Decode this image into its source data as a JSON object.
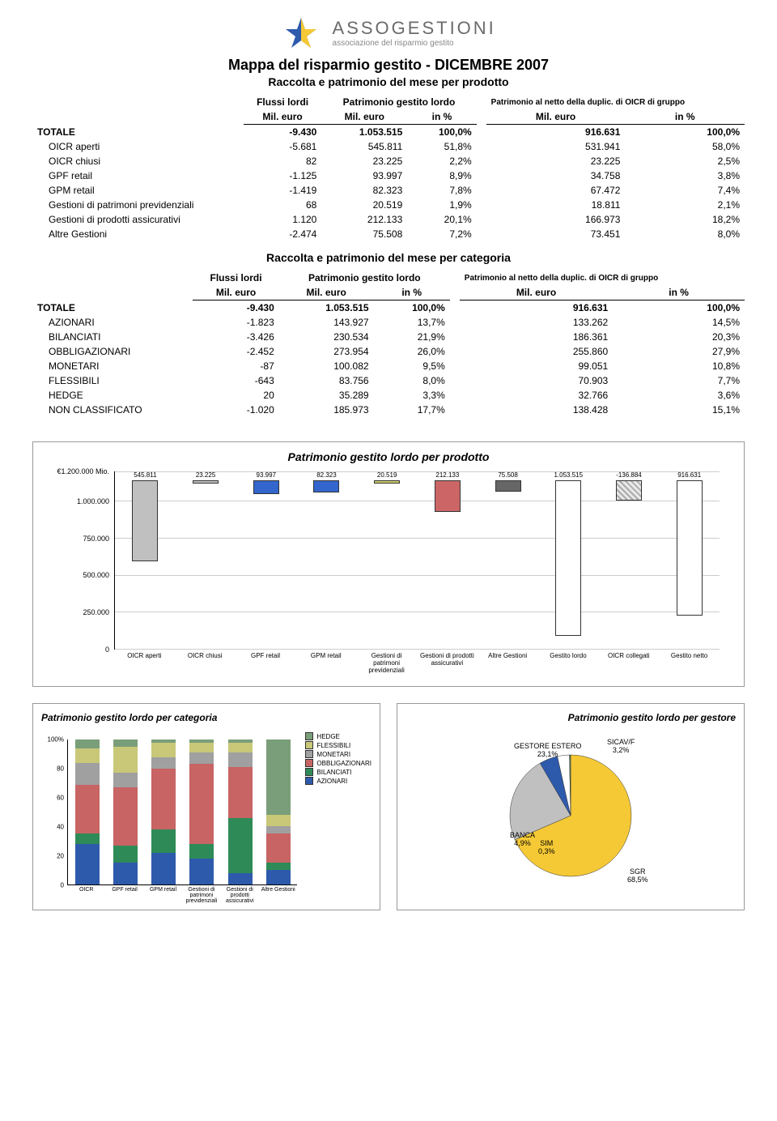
{
  "logo": {
    "name": "ASSOGESTIONI",
    "sub": "associazione del risparmio gestito"
  },
  "page_title": "Mappa del risparmio gestito - DICEMBRE 2007",
  "table1": {
    "subtitle": "Raccolta e patrimonio del mese per prodotto",
    "head_flussi": "Flussi lordi",
    "head_patr": "Patrimonio gestito lordo",
    "head_netto": "Patrimonio al netto della duplic. di OICR di gruppo",
    "unit_mil": "Mil. euro",
    "unit_pct": "in %",
    "rows": [
      {
        "label": "TOTALE",
        "indent": false,
        "total": true,
        "flussi": "-9.430",
        "patr": "1.053.515",
        "patr_pct": "100,0%",
        "netto": "916.631",
        "netto_pct": "100,0%"
      },
      {
        "label": "OICR aperti",
        "indent": true,
        "flussi": "-5.681",
        "patr": "545.811",
        "patr_pct": "51,8%",
        "netto": "531.941",
        "netto_pct": "58,0%"
      },
      {
        "label": "OICR chiusi",
        "indent": true,
        "flussi": "82",
        "patr": "23.225",
        "patr_pct": "2,2%",
        "netto": "23.225",
        "netto_pct": "2,5%"
      },
      {
        "label": "GPF retail",
        "indent": true,
        "flussi": "-1.125",
        "patr": "93.997",
        "patr_pct": "8,9%",
        "netto": "34.758",
        "netto_pct": "3,8%"
      },
      {
        "label": "GPM retail",
        "indent": true,
        "flussi": "-1.419",
        "patr": "82.323",
        "patr_pct": "7,8%",
        "netto": "67.472",
        "netto_pct": "7,4%"
      },
      {
        "label": "Gestioni di patrimoni previdenziali",
        "indent": true,
        "flussi": "68",
        "patr": "20.519",
        "patr_pct": "1,9%",
        "netto": "18.811",
        "netto_pct": "2,1%"
      },
      {
        "label": "Gestioni di prodotti assicurativi",
        "indent": true,
        "flussi": "1.120",
        "patr": "212.133",
        "patr_pct": "20,1%",
        "netto": "166.973",
        "netto_pct": "18,2%"
      },
      {
        "label": "Altre Gestioni",
        "indent": true,
        "flussi": "-2.474",
        "patr": "75.508",
        "patr_pct": "7,2%",
        "netto": "73.451",
        "netto_pct": "8,0%"
      }
    ]
  },
  "table2": {
    "subtitle": "Raccolta e patrimonio del mese per categoria",
    "rows": [
      {
        "label": "TOTALE",
        "indent": false,
        "total": true,
        "flussi": "-9.430",
        "patr": "1.053.515",
        "patr_pct": "100,0%",
        "netto": "916.631",
        "netto_pct": "100,0%"
      },
      {
        "label": "AZIONARI",
        "indent": true,
        "flussi": "-1.823",
        "patr": "143.927",
        "patr_pct": "13,7%",
        "netto": "133.262",
        "netto_pct": "14,5%"
      },
      {
        "label": "BILANCIATI",
        "indent": true,
        "flussi": "-3.426",
        "patr": "230.534",
        "patr_pct": "21,9%",
        "netto": "186.361",
        "netto_pct": "20,3%"
      },
      {
        "label": "OBBLIGAZIONARI",
        "indent": true,
        "flussi": "-2.452",
        "patr": "273.954",
        "patr_pct": "26,0%",
        "netto": "255.860",
        "netto_pct": "27,9%"
      },
      {
        "label": "MONETARI",
        "indent": true,
        "flussi": "-87",
        "patr": "100.082",
        "patr_pct": "9,5%",
        "netto": "99.051",
        "netto_pct": "10,8%"
      },
      {
        "label": "FLESSIBILI",
        "indent": true,
        "flussi": "-643",
        "patr": "83.756",
        "patr_pct": "8,0%",
        "netto": "70.903",
        "netto_pct": "7,7%"
      },
      {
        "label": "HEDGE",
        "indent": true,
        "flussi": "20",
        "patr": "35.289",
        "patr_pct": "3,3%",
        "netto": "32.766",
        "netto_pct": "3,6%"
      },
      {
        "label": "NON CLASSIFICATO",
        "indent": true,
        "flussi": "-1.020",
        "patr": "185.973",
        "patr_pct": "17,7%",
        "netto": "138.428",
        "netto_pct": "15,1%"
      }
    ]
  },
  "bar_chart": {
    "title": "Patrimonio gestito lordo per prodotto",
    "ymax": 1200000,
    "ylabel_top": "€1.200.000 Mio.",
    "yticks": [
      {
        "v": 1200000,
        "label": "€1.200.000 Mio."
      },
      {
        "v": 1000000,
        "label": "1.000.000"
      },
      {
        "v": 750000,
        "label": "750.000"
      },
      {
        "v": 500000,
        "label": "500.000"
      },
      {
        "v": 250000,
        "label": "250.000"
      },
      {
        "v": 0,
        "label": "0"
      }
    ],
    "bars": [
      {
        "label": "OICR aperti",
        "value": 545811,
        "disp": "545.811",
        "color": "#c0c0c0"
      },
      {
        "label": "OICR chiusi",
        "value": 23225,
        "disp": "23.225",
        "color": "#c0c0c0"
      },
      {
        "label": "GPF retail",
        "value": 93997,
        "disp": "93.997",
        "color": "#3366cc"
      },
      {
        "label": "GPM retail",
        "value": 82323,
        "disp": "82.323",
        "color": "#3366cc"
      },
      {
        "label": "Gestioni di patrimoni previdenziali",
        "value": 20519,
        "disp": "20.519",
        "color": "#cccc66"
      },
      {
        "label": "Gestioni di prodotti assicurativi",
        "value": 212133,
        "disp": "212.133",
        "color": "#cc6666"
      },
      {
        "label": "Altre Gestioni",
        "value": 75508,
        "disp": "75.508",
        "color": "#666666"
      },
      {
        "label": "Gestito lordo",
        "value": 1053515,
        "disp": "1.053.515",
        "color": "#ffffff"
      },
      {
        "label": "OICR collegati",
        "value": 136884,
        "disp": "-136.884",
        "color": "#e8e8e8",
        "hatched": true,
        "negative": true
      },
      {
        "label": "Gestito netto",
        "value": 916631,
        "disp": "916.631",
        "color": "#ffffff"
      }
    ]
  },
  "stack_chart": {
    "title": "Patrimonio gestito lordo per categoria",
    "yticks": [
      0,
      20,
      40,
      60,
      80,
      100
    ],
    "ytop_suffix": "%",
    "categories": [
      "OICR",
      "GPF retail",
      "GPM retail",
      "Gestioni di patrimoni previdenziali",
      "Gestioni di prodotti assicurativi",
      "Altre Gestioni"
    ],
    "legend": [
      {
        "label": "HEDGE",
        "color": "#7a9e7a"
      },
      {
        "label": "FLESSIBILI",
        "color": "#c8c878"
      },
      {
        "label": "MONETARI",
        "color": "#a0a0a0"
      },
      {
        "label": "OBBLIGAZIONARI",
        "color": "#c86464"
      },
      {
        "label": "BILANCIATI",
        "color": "#2e8b57"
      },
      {
        "label": "AZIONARI",
        "color": "#2e5aac"
      }
    ],
    "stacks": [
      [
        {
          "c": "#2e5aac",
          "p": 28
        },
        {
          "c": "#2e8b57",
          "p": 7
        },
        {
          "c": "#c86464",
          "p": 34
        },
        {
          "c": "#a0a0a0",
          "p": 15
        },
        {
          "c": "#c8c878",
          "p": 10
        },
        {
          "c": "#7a9e7a",
          "p": 6
        }
      ],
      [
        {
          "c": "#2e5aac",
          "p": 15
        },
        {
          "c": "#2e8b57",
          "p": 12
        },
        {
          "c": "#c86464",
          "p": 40
        },
        {
          "c": "#a0a0a0",
          "p": 10
        },
        {
          "c": "#c8c878",
          "p": 18
        },
        {
          "c": "#7a9e7a",
          "p": 5
        }
      ],
      [
        {
          "c": "#2e5aac",
          "p": 22
        },
        {
          "c": "#2e8b57",
          "p": 16
        },
        {
          "c": "#c86464",
          "p": 42
        },
        {
          "c": "#a0a0a0",
          "p": 8
        },
        {
          "c": "#c8c878",
          "p": 10
        },
        {
          "c": "#7a9e7a",
          "p": 2
        }
      ],
      [
        {
          "c": "#2e5aac",
          "p": 18
        },
        {
          "c": "#2e8b57",
          "p": 10
        },
        {
          "c": "#c86464",
          "p": 55
        },
        {
          "c": "#a0a0a0",
          "p": 8
        },
        {
          "c": "#c8c878",
          "p": 7
        },
        {
          "c": "#7a9e7a",
          "p": 2
        }
      ],
      [
        {
          "c": "#2e5aac",
          "p": 8
        },
        {
          "c": "#2e8b57",
          "p": 38
        },
        {
          "c": "#c86464",
          "p": 35
        },
        {
          "c": "#a0a0a0",
          "p": 10
        },
        {
          "c": "#c8c878",
          "p": 7
        },
        {
          "c": "#7a9e7a",
          "p": 2
        }
      ],
      [
        {
          "c": "#2e5aac",
          "p": 10
        },
        {
          "c": "#2e8b57",
          "p": 5
        },
        {
          "c": "#c86464",
          "p": 20
        },
        {
          "c": "#a0a0a0",
          "p": 5
        },
        {
          "c": "#c8c878",
          "p": 8
        },
        {
          "c": "#7a9e7a",
          "p": 52
        }
      ]
    ]
  },
  "pie_chart": {
    "title": "Patrimonio gestito lordo per gestore",
    "slices": [
      {
        "label": "SGR",
        "pct": 68.5,
        "disp": "SGR\n68,5%",
        "color": "#f5c935"
      },
      {
        "label": "GESTORE ESTERO",
        "pct": 23.1,
        "disp": "GESTORE ESTERO\n23,1%",
        "color": "#c0c0c0"
      },
      {
        "label": "BANCA",
        "pct": 4.9,
        "disp": "BANCA\n4,9%",
        "color": "#2e5aac"
      },
      {
        "label": "SICAV/F",
        "pct": 3.2,
        "disp": "SICAV/F\n3,2%",
        "color": "#ffffff"
      },
      {
        "label": "SIM",
        "pct": 0.3,
        "disp": "SIM\n0,3%",
        "color": "#5a8050"
      }
    ]
  }
}
